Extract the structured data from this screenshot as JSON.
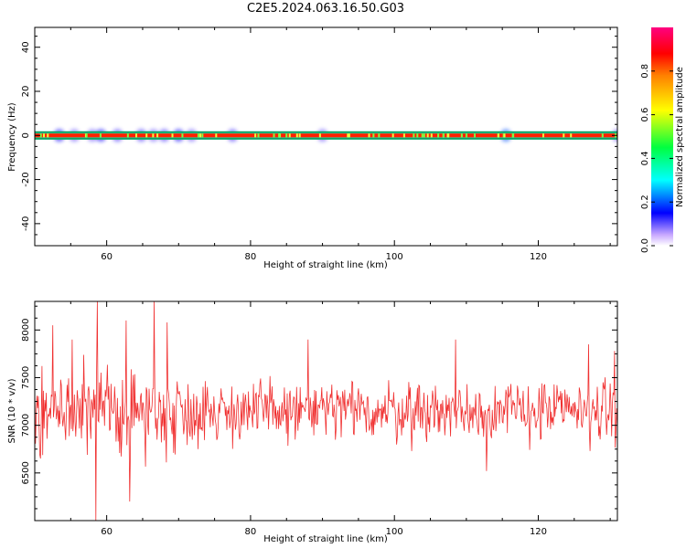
{
  "title": "C2E5.2024.063.16.50.G03",
  "colorbar": {
    "label": "Normalized spectral amplitude",
    "ticks": [
      "0.0",
      "0.2",
      "0.4",
      "0.6",
      "0.8"
    ]
  },
  "chart_data": [
    {
      "type": "heatmap",
      "xlabel": "Height of straight line (km)",
      "ylabel": "Frequency (Hz)",
      "xlim": [
        50,
        131
      ],
      "ylim": [
        -50,
        49
      ],
      "xticks": [
        60,
        80,
        100,
        120
      ],
      "yticks": [
        -40,
        -20,
        0,
        20,
        40
      ],
      "band": {
        "center_frequency": 0,
        "half_width": 1.5,
        "core_amplitude": 0.85,
        "edge_amplitude": 0.5
      },
      "blobs": [
        {
          "x": 53.4,
          "amp": 0.15
        },
        {
          "x": 55.5,
          "amp": 0.1
        },
        {
          "x": 58.0,
          "amp": 0.1
        },
        {
          "x": 59.2,
          "amp": 0.15
        },
        {
          "x": 61.5,
          "amp": 0.12
        },
        {
          "x": 64.8,
          "amp": 0.12
        },
        {
          "x": 66.5,
          "amp": 0.1
        },
        {
          "x": 68.0,
          "amp": 0.12
        },
        {
          "x": 70.0,
          "amp": 0.15
        },
        {
          "x": 71.8,
          "amp": 0.1
        },
        {
          "x": 77.5,
          "amp": 0.12
        },
        {
          "x": 90.0,
          "amp": 0.1
        },
        {
          "x": 115.5,
          "amp": 0.2
        },
        {
          "x": 131.0,
          "amp": 0.1
        }
      ]
    },
    {
      "type": "line",
      "xlabel": "Height of straight line (km)",
      "ylabel": "SNR (10 * v/v)",
      "xlim": [
        50,
        131
      ],
      "ylim": [
        6000,
        8300
      ],
      "xticks": [
        60,
        80,
        100,
        120
      ],
      "yticks": [
        6500,
        7000,
        7500,
        8000
      ],
      "series": [
        {
          "color": "#f03030",
          "mean": 7150,
          "spread": 280,
          "x_step": 0.1,
          "peaks": [
            {
              "x": 52.5,
              "y": 8050
            },
            {
              "x": 55.2,
              "y": 7900
            },
            {
              "x": 58.7,
              "y": 8300
            },
            {
              "x": 58.5,
              "y": 6000
            },
            {
              "x": 62.7,
              "y": 8100
            },
            {
              "x": 66.6,
              "y": 8300
            },
            {
              "x": 67.0,
              "y": 6850
            },
            {
              "x": 68.4,
              "y": 8080
            },
            {
              "x": 63.2,
              "y": 6200
            },
            {
              "x": 88.0,
              "y": 7900
            },
            {
              "x": 108.5,
              "y": 7900
            },
            {
              "x": 112.8,
              "y": 6520
            },
            {
              "x": 127.0,
              "y": 7850
            },
            {
              "x": 130.6,
              "y": 7780
            }
          ]
        }
      ]
    }
  ]
}
